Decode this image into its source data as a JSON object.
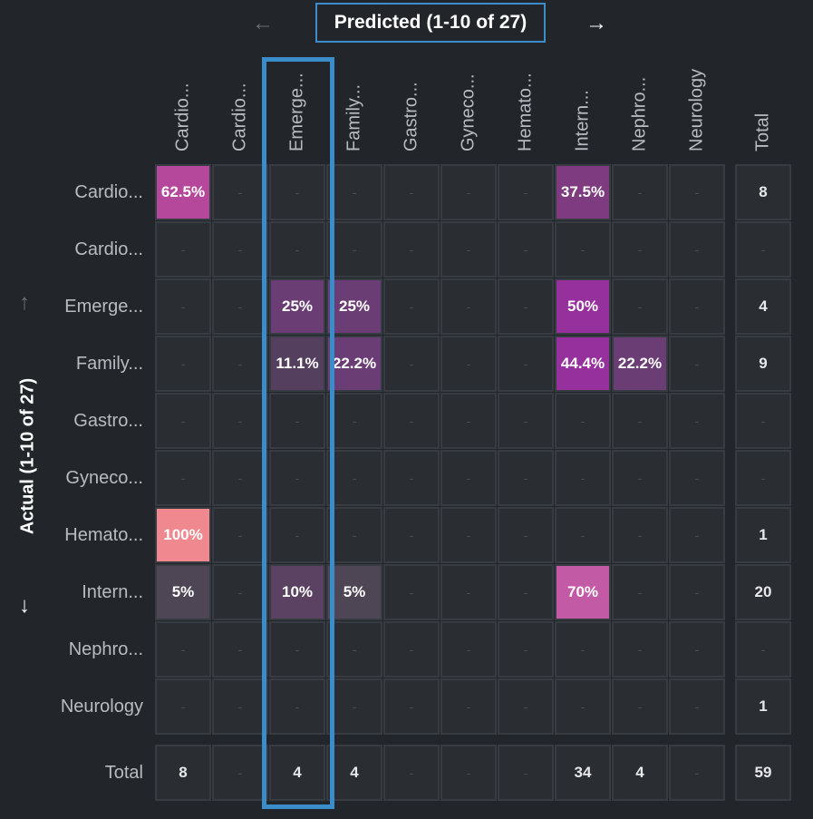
{
  "nav": {
    "prev_arrow": "←",
    "next_arrow": "→",
    "up_arrow": "↑",
    "down_arrow": "↓"
  },
  "colors": {
    "highlight": "#3a8ccb",
    "background": "#22262b",
    "grid_border": "#373c42"
  },
  "chart_data": {
    "type": "heatmap",
    "title": "Predicted (1-10 of 27)",
    "xlabel": "Predicted (1-10 of 27)",
    "ylabel": "Actual (1-10 of 27)",
    "columns": [
      "Cardio...",
      "Cardio...",
      "Emerge...",
      "Family...",
      "Gastro...",
      "Gyneco...",
      "Hemato...",
      "Intern...",
      "Nephro...",
      "Neurology"
    ],
    "rows": [
      "Cardio...",
      "Cardio...",
      "Emerge...",
      "Family...",
      "Gastro...",
      "Gyneco...",
      "Hemato...",
      "Intern...",
      "Nephro...",
      "Neurology"
    ],
    "total_label": "Total",
    "empty_symbol": "-",
    "highlighted_column": "Emerge...",
    "values": [
      [
        "62.5%",
        "-",
        "-",
        "-",
        "-",
        "-",
        "-",
        "37.5%",
        "-",
        "-"
      ],
      [
        "-",
        "-",
        "-",
        "-",
        "-",
        "-",
        "-",
        "-",
        "-",
        "-"
      ],
      [
        "-",
        "-",
        "25%",
        "25%",
        "-",
        "-",
        "-",
        "50%",
        "-",
        "-"
      ],
      [
        "-",
        "-",
        "11.1%",
        "22.2%",
        "-",
        "-",
        "-",
        "44.4%",
        "22.2%",
        "-"
      ],
      [
        "-",
        "-",
        "-",
        "-",
        "-",
        "-",
        "-",
        "-",
        "-",
        "-"
      ],
      [
        "-",
        "-",
        "-",
        "-",
        "-",
        "-",
        "-",
        "-",
        "-",
        "-"
      ],
      [
        "100%",
        "-",
        "-",
        "-",
        "-",
        "-",
        "-",
        "-",
        "-",
        "-"
      ],
      [
        "5%",
        "-",
        "10%",
        "5%",
        "-",
        "-",
        "-",
        "70%",
        "-",
        "-"
      ],
      [
        "-",
        "-",
        "-",
        "-",
        "-",
        "-",
        "-",
        "-",
        "-",
        "-"
      ],
      [
        "-",
        "-",
        "-",
        "-",
        "-",
        "-",
        "-",
        "-",
        "-",
        "-"
      ]
    ],
    "cell_colors": [
      [
        "#b5489b",
        null,
        null,
        null,
        null,
        null,
        null,
        "#7f3b80",
        null,
        null
      ],
      [
        null,
        null,
        null,
        null,
        null,
        null,
        null,
        null,
        null,
        null
      ],
      [
        null,
        null,
        "#6a3d75",
        "#6a3d75",
        null,
        null,
        null,
        "#96309c",
        null,
        null
      ],
      [
        null,
        null,
        "#543f5e",
        "#6a3d75",
        null,
        null,
        null,
        "#96309c",
        "#6a3d75",
        null
      ],
      [
        null,
        null,
        null,
        null,
        null,
        null,
        null,
        null,
        null,
        null
      ],
      [
        null,
        null,
        null,
        null,
        null,
        null,
        null,
        null,
        null,
        null
      ],
      [
        "#f0888f",
        null,
        null,
        null,
        null,
        null,
        null,
        null,
        null,
        null
      ],
      [
        "#4e4655",
        null,
        "#5b4263",
        "#4e4655",
        null,
        null,
        null,
        "#c25aa6",
        null,
        null
      ],
      [
        null,
        null,
        null,
        null,
        null,
        null,
        null,
        null,
        null,
        null
      ],
      [
        null,
        null,
        null,
        null,
        null,
        null,
        null,
        null,
        null,
        null
      ]
    ],
    "row_totals": [
      "8",
      "-",
      "4",
      "9",
      "-",
      "-",
      "1",
      "20",
      "-",
      "1"
    ],
    "column_totals": [
      "8",
      "-",
      "4",
      "4",
      "-",
      "-",
      "-",
      "34",
      "4",
      "-"
    ],
    "grand_total": "59"
  }
}
